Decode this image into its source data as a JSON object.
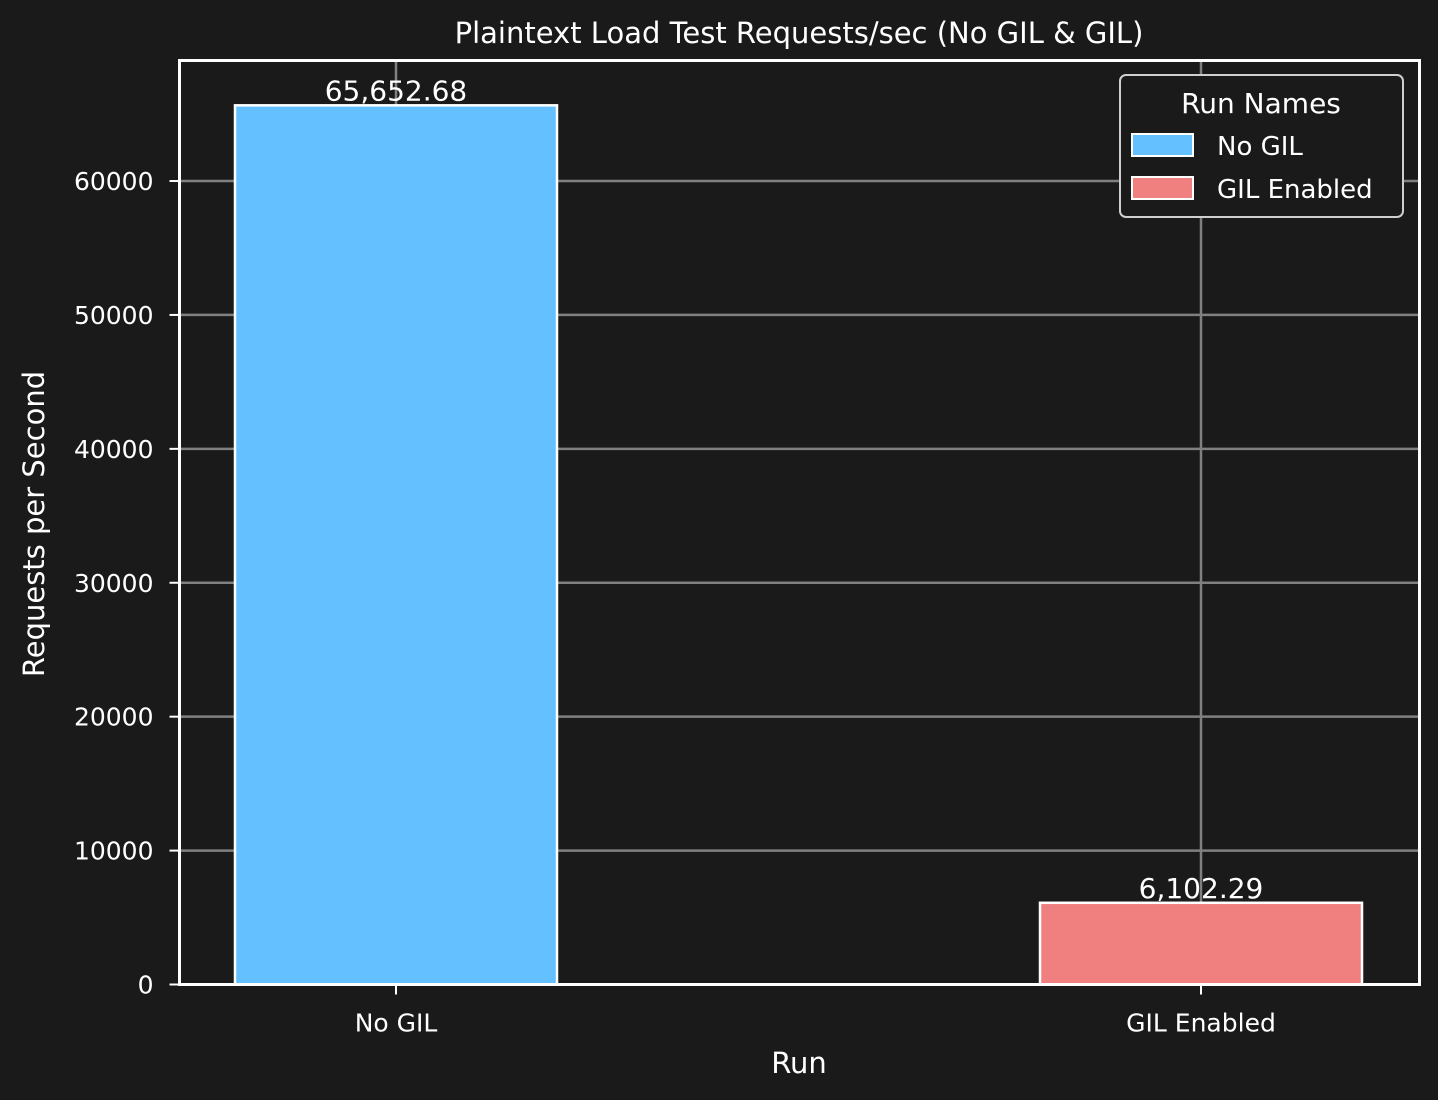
{
  "chart_data": {
    "type": "bar",
    "title": "Plaintext Load Test Requests/sec (No GIL & GIL)",
    "xlabel": "Run",
    "ylabel": "Requests per Second",
    "categories": [
      "No GIL",
      "GIL Enabled"
    ],
    "values": [
      65652.68,
      6102.29
    ],
    "value_labels": [
      "65,652.68",
      "6,102.29"
    ],
    "colors": [
      "#64c0ff",
      "#f08080"
    ],
    "ylim": [
      0,
      69000
    ],
    "yticks": [
      0,
      10000,
      20000,
      30000,
      40000,
      50000,
      60000
    ],
    "ytick_labels": [
      "0",
      "10000",
      "20000",
      "30000",
      "40000",
      "50000",
      "60000"
    ],
    "grid": true,
    "legend": {
      "title": "Run Names",
      "placement": "top-right",
      "entries": [
        "No GIL",
        "GIL Enabled"
      ]
    },
    "theme": {
      "background": "#1a1a1a",
      "foreground": "#ffffff",
      "grid": "#808080"
    }
  }
}
